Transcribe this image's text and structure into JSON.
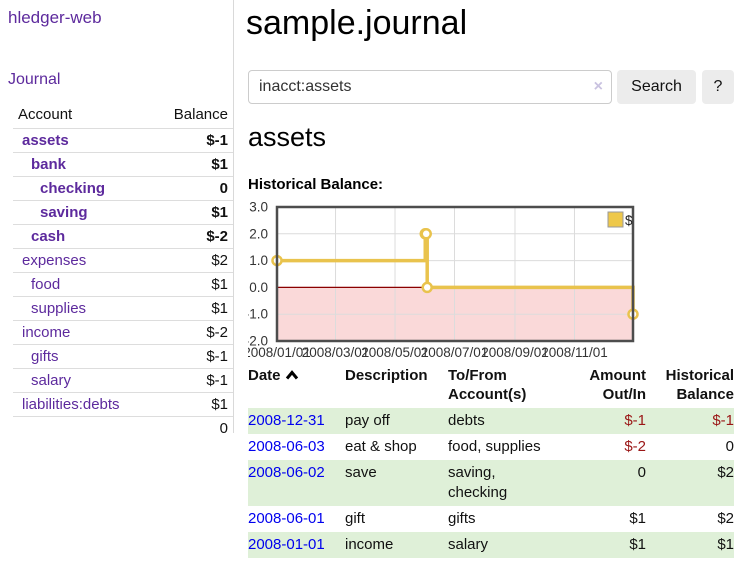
{
  "app_title": "hledger-web",
  "sidebar": {
    "journal_link": "Journal",
    "headers": {
      "account": "Account",
      "balance": "Balance"
    },
    "accounts": [
      {
        "name": "assets",
        "balance": "$-1",
        "nameClass": "i0 bold",
        "balClass": "bold neg"
      },
      {
        "name": "bank",
        "balance": "$1",
        "nameClass": "i1 bold",
        "balClass": "bold"
      },
      {
        "name": "checking",
        "balance": "0",
        "nameClass": "i2 bold",
        "balClass": "bold"
      },
      {
        "name": "saving",
        "balance": "$1",
        "nameClass": "i2 bold",
        "balClass": "bold"
      },
      {
        "name": "cash",
        "balance": "$-2",
        "nameClass": "i1 bold",
        "balClass": "bold neg"
      },
      {
        "name": "expenses",
        "balance": "$2",
        "nameClass": "i0",
        "balClass": ""
      },
      {
        "name": "food",
        "balance": "$1",
        "nameClass": "i1",
        "balClass": ""
      },
      {
        "name": "supplies",
        "balance": "$1",
        "nameClass": "i1",
        "balClass": ""
      },
      {
        "name": "income",
        "balance": "$-2",
        "nameClass": "i0",
        "balClass": "negfade"
      },
      {
        "name": "gifts",
        "balance": "$-1",
        "nameClass": "i1",
        "balClass": "negfade"
      },
      {
        "name": "salary",
        "balance": "$-1",
        "nameClass": "i1 blue",
        "balClass": "negfade"
      },
      {
        "name": "liabilities:debts",
        "balance": "$1",
        "nameClass": "i0",
        "balClass": ""
      }
    ],
    "total": "0"
  },
  "main": {
    "title": "sample.journal",
    "search": {
      "value": "inacct:assets",
      "clear_icon": "×",
      "search_button": "Search",
      "help_button": "?"
    },
    "account_heading": "assets",
    "chart_title": "Historical Balance:"
  },
  "chart_data": {
    "type": "line",
    "step": true,
    "title": "Historical Balance",
    "x_domain": [
      "2008-01-01",
      "2008-12-31"
    ],
    "ylim": [
      -2,
      3
    ],
    "y_ticks": [
      "3.0",
      "2.0",
      "1.0",
      "0.0",
      "-1.0",
      "-2.0"
    ],
    "y_tick_values": [
      3,
      2,
      1,
      0,
      -1,
      -2
    ],
    "x_ticks": [
      "2008/01/01",
      "2008/03/01",
      "2008/05/01",
      "2008/07/01",
      "2008/09/01",
      "2008/11/01"
    ],
    "series": [
      {
        "name": "$",
        "color": "#e9c34d",
        "points": [
          {
            "date": "2008-01-01",
            "value": 1
          },
          {
            "date": "2008-06-01",
            "value": 2
          },
          {
            "date": "2008-06-02",
            "value": 2
          },
          {
            "date": "2008-06-03",
            "value": 0
          },
          {
            "date": "2008-12-31",
            "value": -1
          }
        ]
      }
    ],
    "legend": {
      "position": "top-right",
      "label": "$",
      "swatch_color": "#eec84a"
    },
    "grid": true,
    "grid_color": "#dcdcdc",
    "border_color": "#4d4d4d",
    "zero_line_color": "#8b0000",
    "negative_region_color": "#fad9d9",
    "tick_label_color": "#333333"
  },
  "register": {
    "headers": {
      "date": "Date",
      "sort_icon": "chevron-up",
      "description": "Description",
      "accounts": "To/From\nAccount(s)",
      "amount": "Amount\nOut/In",
      "balance": "Historical\nBalance"
    },
    "rows": [
      {
        "date": "2008-12-31",
        "description": "pay off",
        "accounts": "debts",
        "amount": "$-1",
        "balance": "$-1",
        "rowClass": "green",
        "amountClass": "neg",
        "balClass": "neg"
      },
      {
        "date": "2008-06-03",
        "description": "eat & shop",
        "accounts": "food, supplies",
        "amount": "$-2",
        "balance": "0",
        "rowClass": "",
        "amountClass": "neg",
        "balClass": ""
      },
      {
        "date": "2008-06-02",
        "description": "save",
        "accounts": "saving,\nchecking",
        "amount": "0",
        "balance": "$2",
        "rowClass": "green",
        "amountClass": "",
        "balClass": ""
      },
      {
        "date": "2008-06-01",
        "description": "gift",
        "accounts": "gifts",
        "amount": "$1",
        "balance": "$2",
        "rowClass": "",
        "amountClass": "",
        "balClass": ""
      },
      {
        "date": "2008-01-01",
        "description": "income",
        "accounts": "salary",
        "amount": "$1",
        "balance": "$1",
        "rowClass": "green",
        "amountClass": "",
        "balClass": ""
      }
    ]
  }
}
